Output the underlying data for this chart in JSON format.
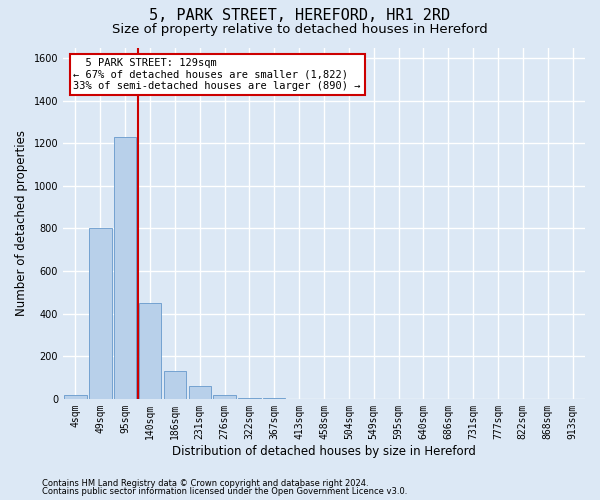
{
  "title": "5, PARK STREET, HEREFORD, HR1 2RD",
  "subtitle": "Size of property relative to detached houses in Hereford",
  "xlabel": "Distribution of detached houses by size in Hereford",
  "ylabel": "Number of detached properties",
  "footnote1": "Contains HM Land Registry data © Crown copyright and database right 2024.",
  "footnote2": "Contains public sector information licensed under the Open Government Licence v3.0.",
  "bin_labels": [
    "4sqm",
    "49sqm",
    "95sqm",
    "140sqm",
    "186sqm",
    "231sqm",
    "276sqm",
    "322sqm",
    "367sqm",
    "413sqm",
    "458sqm",
    "504sqm",
    "549sqm",
    "595sqm",
    "640sqm",
    "686sqm",
    "731sqm",
    "777sqm",
    "822sqm",
    "868sqm",
    "913sqm"
  ],
  "bar_heights": [
    20,
    800,
    1230,
    450,
    130,
    60,
    20,
    5,
    2,
    0,
    0,
    0,
    0,
    0,
    0,
    0,
    0,
    0,
    0,
    0,
    0
  ],
  "bar_color": "#b8d0ea",
  "bar_edge_color": "#6699cc",
  "property_line_color": "#cc0000",
  "annotation_box_color": "#ffffff",
  "annotation_box_edge_color": "#cc0000",
  "ylim": [
    0,
    1650
  ],
  "yticks": [
    0,
    200,
    400,
    600,
    800,
    1000,
    1200,
    1400,
    1600
  ],
  "background_color": "#dce8f5",
  "plot_background_color": "#dce8f5",
  "grid_color": "#ffffff",
  "title_fontsize": 11,
  "subtitle_fontsize": 9.5,
  "axis_label_fontsize": 8.5,
  "tick_fontsize": 7,
  "footnote_fontsize": 6,
  "annotation_fontsize": 7.5
}
